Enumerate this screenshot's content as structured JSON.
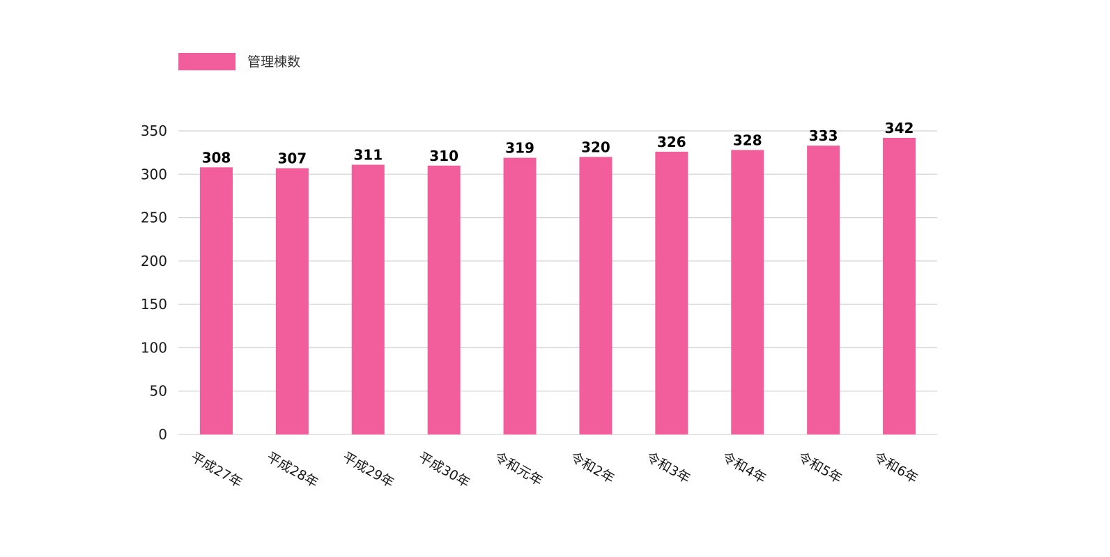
{
  "chart_data": {
    "type": "bar",
    "title": "",
    "xlabel": "",
    "ylabel": "",
    "categories": [
      "平成27年",
      "平成28年",
      "平成29年",
      "平成30年",
      "令和元年",
      "令和2年",
      "令和3年",
      "令和4年",
      "令和5年",
      "令和6年"
    ],
    "series": [
      {
        "name": "管理棟数",
        "values": [
          308,
          307,
          311,
          310,
          319,
          320,
          326,
          328,
          333,
          342
        ],
        "color": "#f25d9c"
      }
    ],
    "ylim": [
      0,
      350
    ],
    "yticks": [
      0,
      50,
      100,
      150,
      200,
      250,
      300,
      350
    ],
    "grid": true,
    "legend": "top-left",
    "data_labels": true,
    "colors": {
      "bar": "#f25d9c",
      "grid": "#d4d4d4"
    }
  }
}
